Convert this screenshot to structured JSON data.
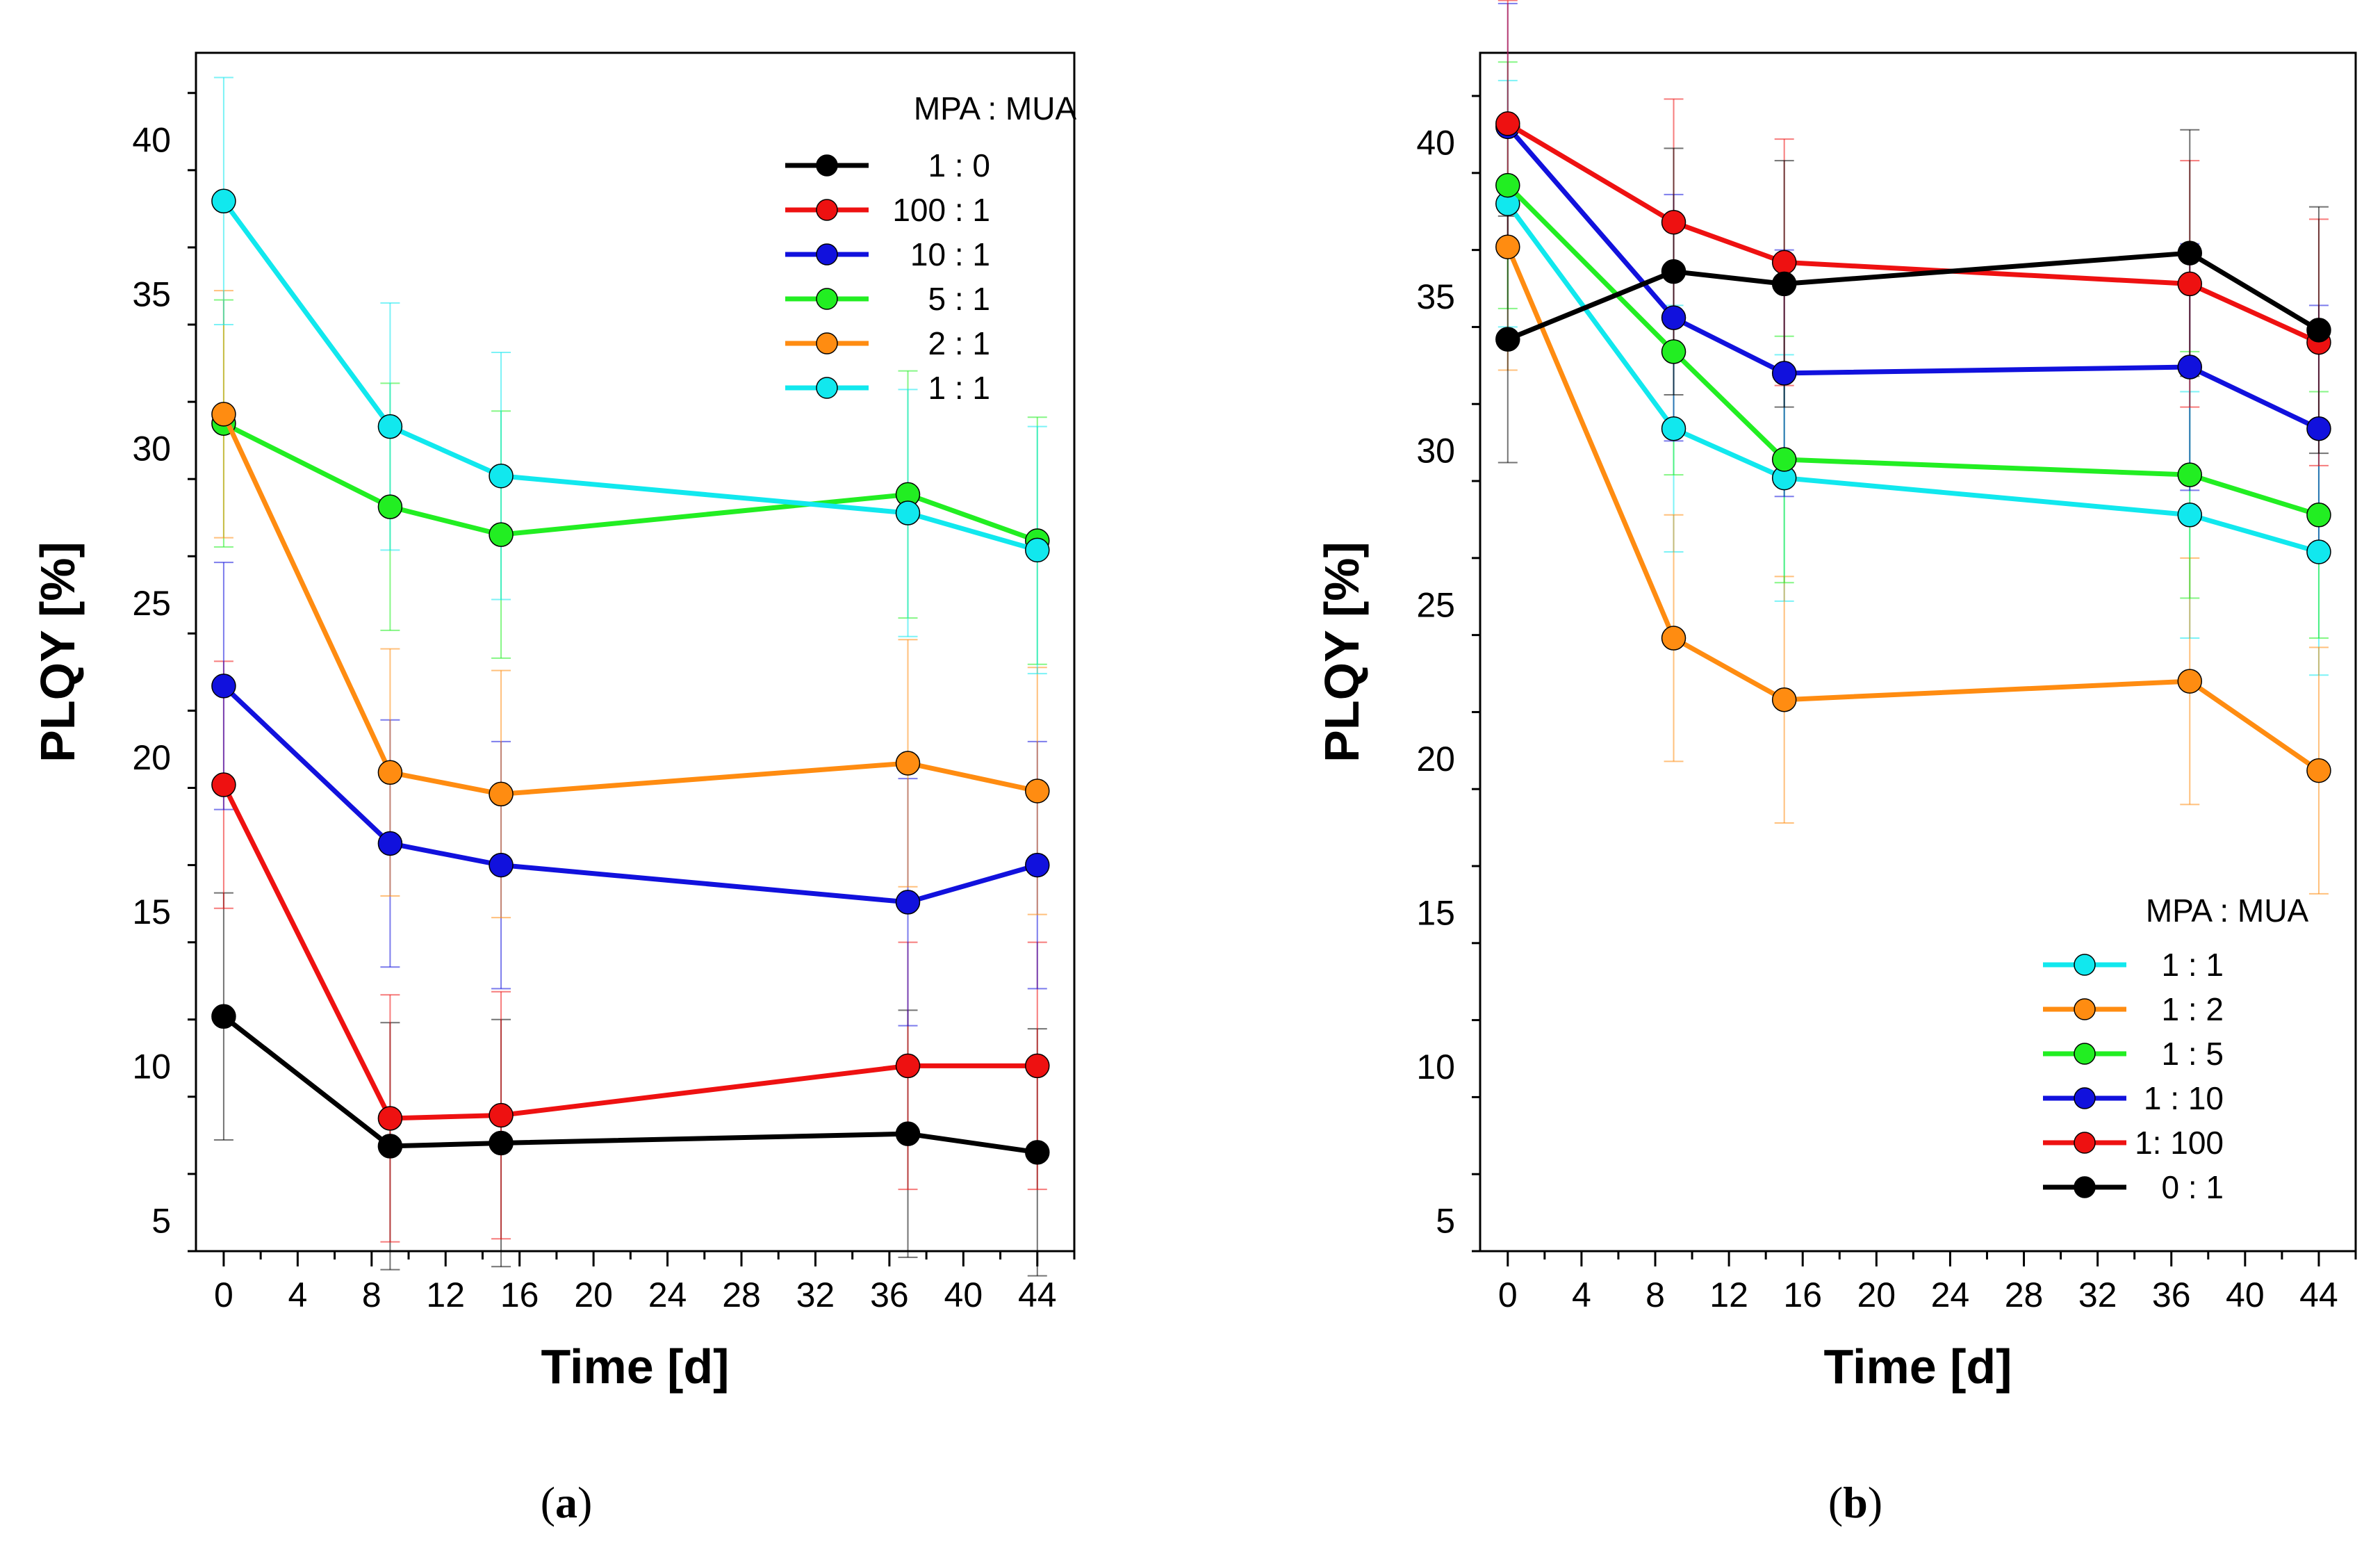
{
  "chart_data": [
    {
      "type": "line",
      "panel": "a",
      "caption_letter": "a",
      "xlabel": "Time [d]",
      "ylabel": "PLQY [%]",
      "xlim": [
        -1.5,
        46
      ],
      "ylim": [
        4,
        42.8
      ],
      "xticks": [
        0,
        4,
        8,
        12,
        16,
        20,
        24,
        28,
        32,
        36,
        40,
        44
      ],
      "yticks": [
        5,
        10,
        15,
        20,
        25,
        30,
        35,
        40
      ],
      "x": [
        0,
        9,
        15,
        37,
        44
      ],
      "legend_title": "MPA : MUA",
      "legend_position": "top-right",
      "series": [
        {
          "name": "1 : 0",
          "color": "#000000",
          "values": [
            11.6,
            7.4,
            7.5,
            7.8,
            7.2
          ],
          "errors": [
            4.0,
            4.0,
            4.0,
            4.0,
            4.0
          ]
        },
        {
          "name": "100 : 1",
          "color": "#ee1111",
          "values": [
            19.1,
            8.3,
            8.4,
            10.0,
            10.0
          ],
          "errors": [
            4.0,
            4.0,
            4.0,
            4.0,
            4.0
          ]
        },
        {
          "name": "10 : 1",
          "color": "#1111dd",
          "values": [
            22.3,
            17.2,
            16.5,
            15.3,
            16.5
          ],
          "errors": [
            4.0,
            4.0,
            4.0,
            4.0,
            4.0
          ]
        },
        {
          "name": "5 : 1",
          "color": "#22ee22",
          "values": [
            30.8,
            28.1,
            27.2,
            28.5,
            27.0
          ],
          "errors": [
            4.0,
            4.0,
            4.0,
            4.0,
            4.0
          ]
        },
        {
          "name": "2 : 1",
          "color": "#ff8c11",
          "values": [
            31.1,
            19.5,
            18.8,
            19.8,
            18.9
          ],
          "errors": [
            4.0,
            4.0,
            4.0,
            4.0,
            4.0
          ]
        },
        {
          "name": "1 : 1",
          "color": "#11e8ee",
          "values": [
            38.0,
            30.7,
            29.1,
            27.9,
            26.7
          ],
          "errors": [
            4.0,
            4.0,
            4.0,
            4.0,
            4.0
          ]
        }
      ]
    },
    {
      "type": "line",
      "panel": "b",
      "caption_letter": "b",
      "xlabel": "Time [d]",
      "ylabel": "PLQY [%]",
      "xlim": [
        -1.5,
        46
      ],
      "ylim": [
        4,
        42.9
      ],
      "xticks": [
        0,
        4,
        8,
        12,
        16,
        20,
        24,
        28,
        32,
        36,
        40,
        44
      ],
      "yticks": [
        5,
        10,
        15,
        20,
        25,
        30,
        35,
        40
      ],
      "x": [
        0,
        9,
        15,
        37,
        44
      ],
      "legend_title": "MPA : MUA",
      "legend_position": "bottom-right",
      "series": [
        {
          "name": "1 : 1",
          "color": "#11e8ee",
          "values": [
            38.0,
            30.7,
            29.1,
            27.9,
            26.7
          ],
          "errors": [
            4.0,
            4.0,
            4.0,
            4.0,
            4.0
          ]
        },
        {
          "name": "1 : 2",
          "color": "#ff8c11",
          "values": [
            36.6,
            23.9,
            21.9,
            22.5,
            19.6
          ],
          "errors": [
            4.0,
            4.0,
            4.0,
            4.0,
            4.0
          ]
        },
        {
          "name": "1 : 5",
          "color": "#22ee22",
          "values": [
            38.6,
            33.2,
            29.7,
            29.2,
            27.9
          ],
          "errors": [
            4.0,
            4.0,
            4.0,
            4.0,
            4.0
          ]
        },
        {
          "name": "1 : 10",
          "color": "#1111dd",
          "values": [
            40.5,
            34.3,
            32.5,
            32.7,
            30.7
          ],
          "errors": [
            4.0,
            4.0,
            4.0,
            4.0,
            4.0
          ]
        },
        {
          "name": "1: 100",
          "color": "#ee1111",
          "values": [
            40.6,
            37.4,
            36.1,
            35.4,
            33.5
          ],
          "errors": [
            4.0,
            4.0,
            4.0,
            4.0,
            4.0
          ]
        },
        {
          "name": "0 : 1",
          "color": "#000000",
          "values": [
            33.6,
            35.8,
            35.4,
            36.4,
            33.9
          ],
          "errors": [
            4.0,
            4.0,
            4.0,
            4.0,
            4.0
          ]
        }
      ]
    }
  ]
}
